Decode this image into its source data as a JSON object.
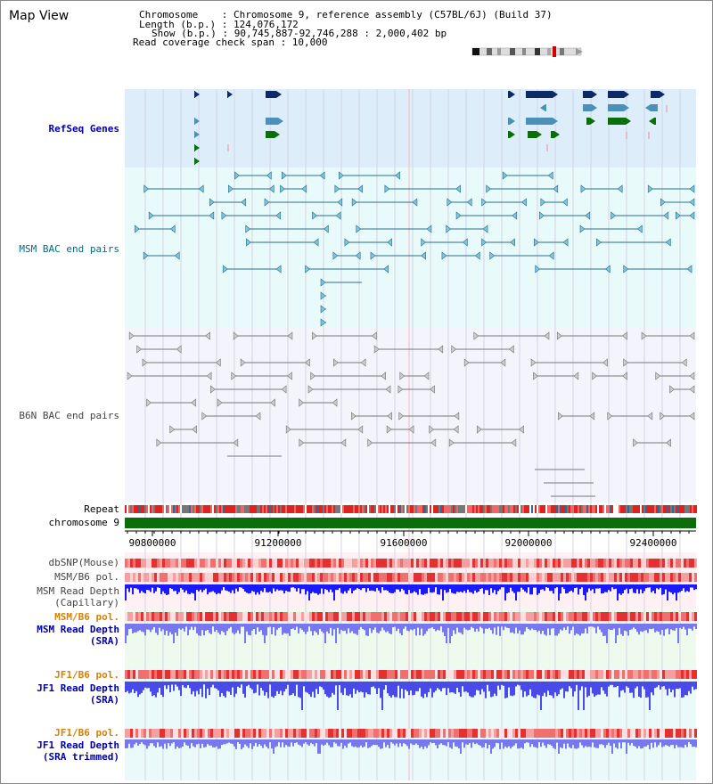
{
  "header": {
    "title": "Map View",
    "chromosome_line": "Chromosome    : Chromosome 9, reference assembly (C57BL/6J) (Build 37)",
    "length_line": "Length (b.p.) : 124,076,172",
    "show_line": "Show (b.p.) : 90,745,887-92,746,288 : 2,000,402 bp",
    "coverage_line": "Read coverage check span : 10,000"
  },
  "tracks": {
    "refseq": "RefSeq Genes",
    "msm_bac": "MSM BAC end pairs",
    "b6n_bac": "B6N BAC end pairs",
    "repeat": "Repeat",
    "chromosome": "chromosome 9"
  },
  "axis": {
    "ticks": [
      "90800000",
      "91200000",
      "91600000",
      "92000000",
      "92400000"
    ]
  },
  "lower_tracks": {
    "dbsnp": "dbSNP(Mouse)",
    "msm_b6_pol_1": "MSM/B6 pol.",
    "msm_depth_cap_1": "MSM Read Depth",
    "msm_depth_cap_2": "(Capillary)",
    "msm_b6_pol_2": "MSM/B6 pol.",
    "msm_depth_sra_1": "MSM Read Depth",
    "msm_depth_sra_2": "(SRA)",
    "jf1_b6_pol_1": "JF1/B6 pol.",
    "jf1_depth_sra_1": "JF1 Read Depth",
    "jf1_depth_sra_2": "(SRA)",
    "jf1_b6_pol_2": "JF1/B6 pol.",
    "jf1_depth_trim_1": "JF1 Read Depth",
    "jf1_depth_trim_2": "(SRA trimmed)"
  },
  "colors": {
    "refseq_bg": "#ddeefa",
    "msm_bg": "#e8fafa",
    "b6n_bg": "#f4f4fc",
    "gene_navy": "#0d2a66",
    "gene_teal": "#4a90b8",
    "gene_green": "#0a6e0a",
    "bac_teal": "#2a6e8e",
    "bac_gray": "#777777",
    "chrom_green": "#0b6e0b",
    "depth_blue": "#1a1aff",
    "depth_light": "#7777ee",
    "pol_red": "#e43030",
    "pink_band": "#ffd6dc"
  }
}
